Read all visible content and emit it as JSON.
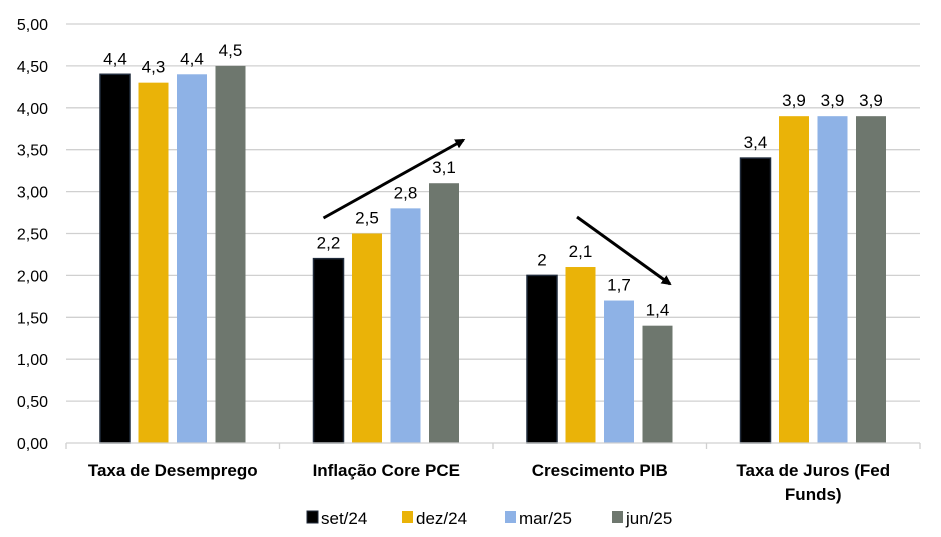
{
  "chart_data": {
    "type": "bar",
    "title": "",
    "xlabel": "",
    "ylabel": "",
    "ylim": [
      0,
      5
    ],
    "yticks": [
      "0,00",
      "0,50",
      "1,00",
      "1,50",
      "2,00",
      "2,50",
      "3,00",
      "3,50",
      "4,00",
      "4,50",
      "5,00"
    ],
    "grid": true,
    "legend_position": "bottom",
    "categories": [
      [
        "Taxa de Desemprego"
      ],
      [
        "Inflação Core PCE"
      ],
      [
        "Crescimento PIB"
      ],
      [
        "Taxa de Juros (Fed",
        "Funds)"
      ]
    ],
    "series": [
      {
        "name": "set/24",
        "color": "#000000",
        "values": [
          4.4,
          2.2,
          2.0,
          3.4
        ],
        "labels": [
          "4,4",
          "2,2",
          "2",
          "3,4"
        ]
      },
      {
        "name": "dez/24",
        "color": "#EAB308",
        "values": [
          4.3,
          2.5,
          2.1,
          3.9
        ],
        "labels": [
          "4,3",
          "2,5",
          "2,1",
          "3,9"
        ]
      },
      {
        "name": "mar/25",
        "color": "#8EB2E6",
        "values": [
          4.4,
          2.8,
          1.7,
          3.9
        ],
        "labels": [
          "4,4",
          "2,8",
          "1,7",
          "3,9"
        ]
      },
      {
        "name": "jun/25",
        "color": "#6E776E",
        "values": [
          4.5,
          3.1,
          1.4,
          3.9
        ],
        "labels": [
          "4,5",
          "3,1",
          "1,4",
          "3,9"
        ]
      }
    ],
    "annotations": [
      {
        "type": "arrow",
        "direction": "up",
        "category": "Inflação Core PCE"
      },
      {
        "type": "arrow",
        "direction": "down",
        "category": "Crescimento PIB"
      }
    ]
  }
}
